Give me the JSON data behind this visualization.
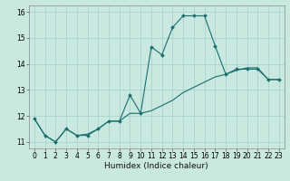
{
  "title": "",
  "xlabel": "Humidex (Indice chaleur)",
  "ylabel": "",
  "bg_color": "#c8e8e0",
  "grid_color": "#a8d4cc",
  "line_color": "#1a6e6e",
  "xlim": [
    -0.5,
    23.5
  ],
  "ylim": [
    10.75,
    16.25
  ],
  "xticks": [
    0,
    1,
    2,
    3,
    4,
    5,
    6,
    7,
    8,
    9,
    10,
    11,
    12,
    13,
    14,
    15,
    16,
    17,
    18,
    19,
    20,
    21,
    22,
    23
  ],
  "yticks": [
    11,
    12,
    13,
    14,
    15,
    16
  ],
  "series1_x": [
    0,
    1,
    2,
    3,
    4,
    5,
    6,
    7,
    8,
    9,
    10,
    11,
    12,
    13,
    14,
    15,
    16,
    17,
    18,
    19,
    20,
    21,
    22,
    23
  ],
  "series1_y": [
    11.9,
    11.25,
    11.0,
    11.5,
    11.25,
    11.25,
    11.5,
    11.8,
    11.8,
    12.8,
    12.1,
    14.65,
    14.35,
    15.4,
    15.85,
    15.85,
    15.85,
    14.7,
    13.6,
    13.8,
    13.8,
    13.8,
    13.4,
    13.4
  ],
  "series2_x": [
    0,
    1,
    2,
    3,
    4,
    5,
    6,
    7,
    8,
    9,
    10,
    11,
    12,
    13,
    14,
    15,
    16,
    17,
    18,
    19,
    20,
    21,
    22,
    23
  ],
  "series2_y": [
    11.9,
    11.25,
    11.0,
    11.5,
    11.25,
    11.3,
    11.5,
    11.8,
    11.8,
    12.1,
    12.1,
    12.2,
    12.4,
    12.6,
    12.9,
    13.1,
    13.3,
    13.5,
    13.6,
    13.75,
    13.85,
    13.85,
    13.4,
    13.4
  ],
  "xlabel_fontsize": 6.5,
  "tick_fontsize": 5.5,
  "linewidth": 0.8,
  "markersize": 2.0
}
